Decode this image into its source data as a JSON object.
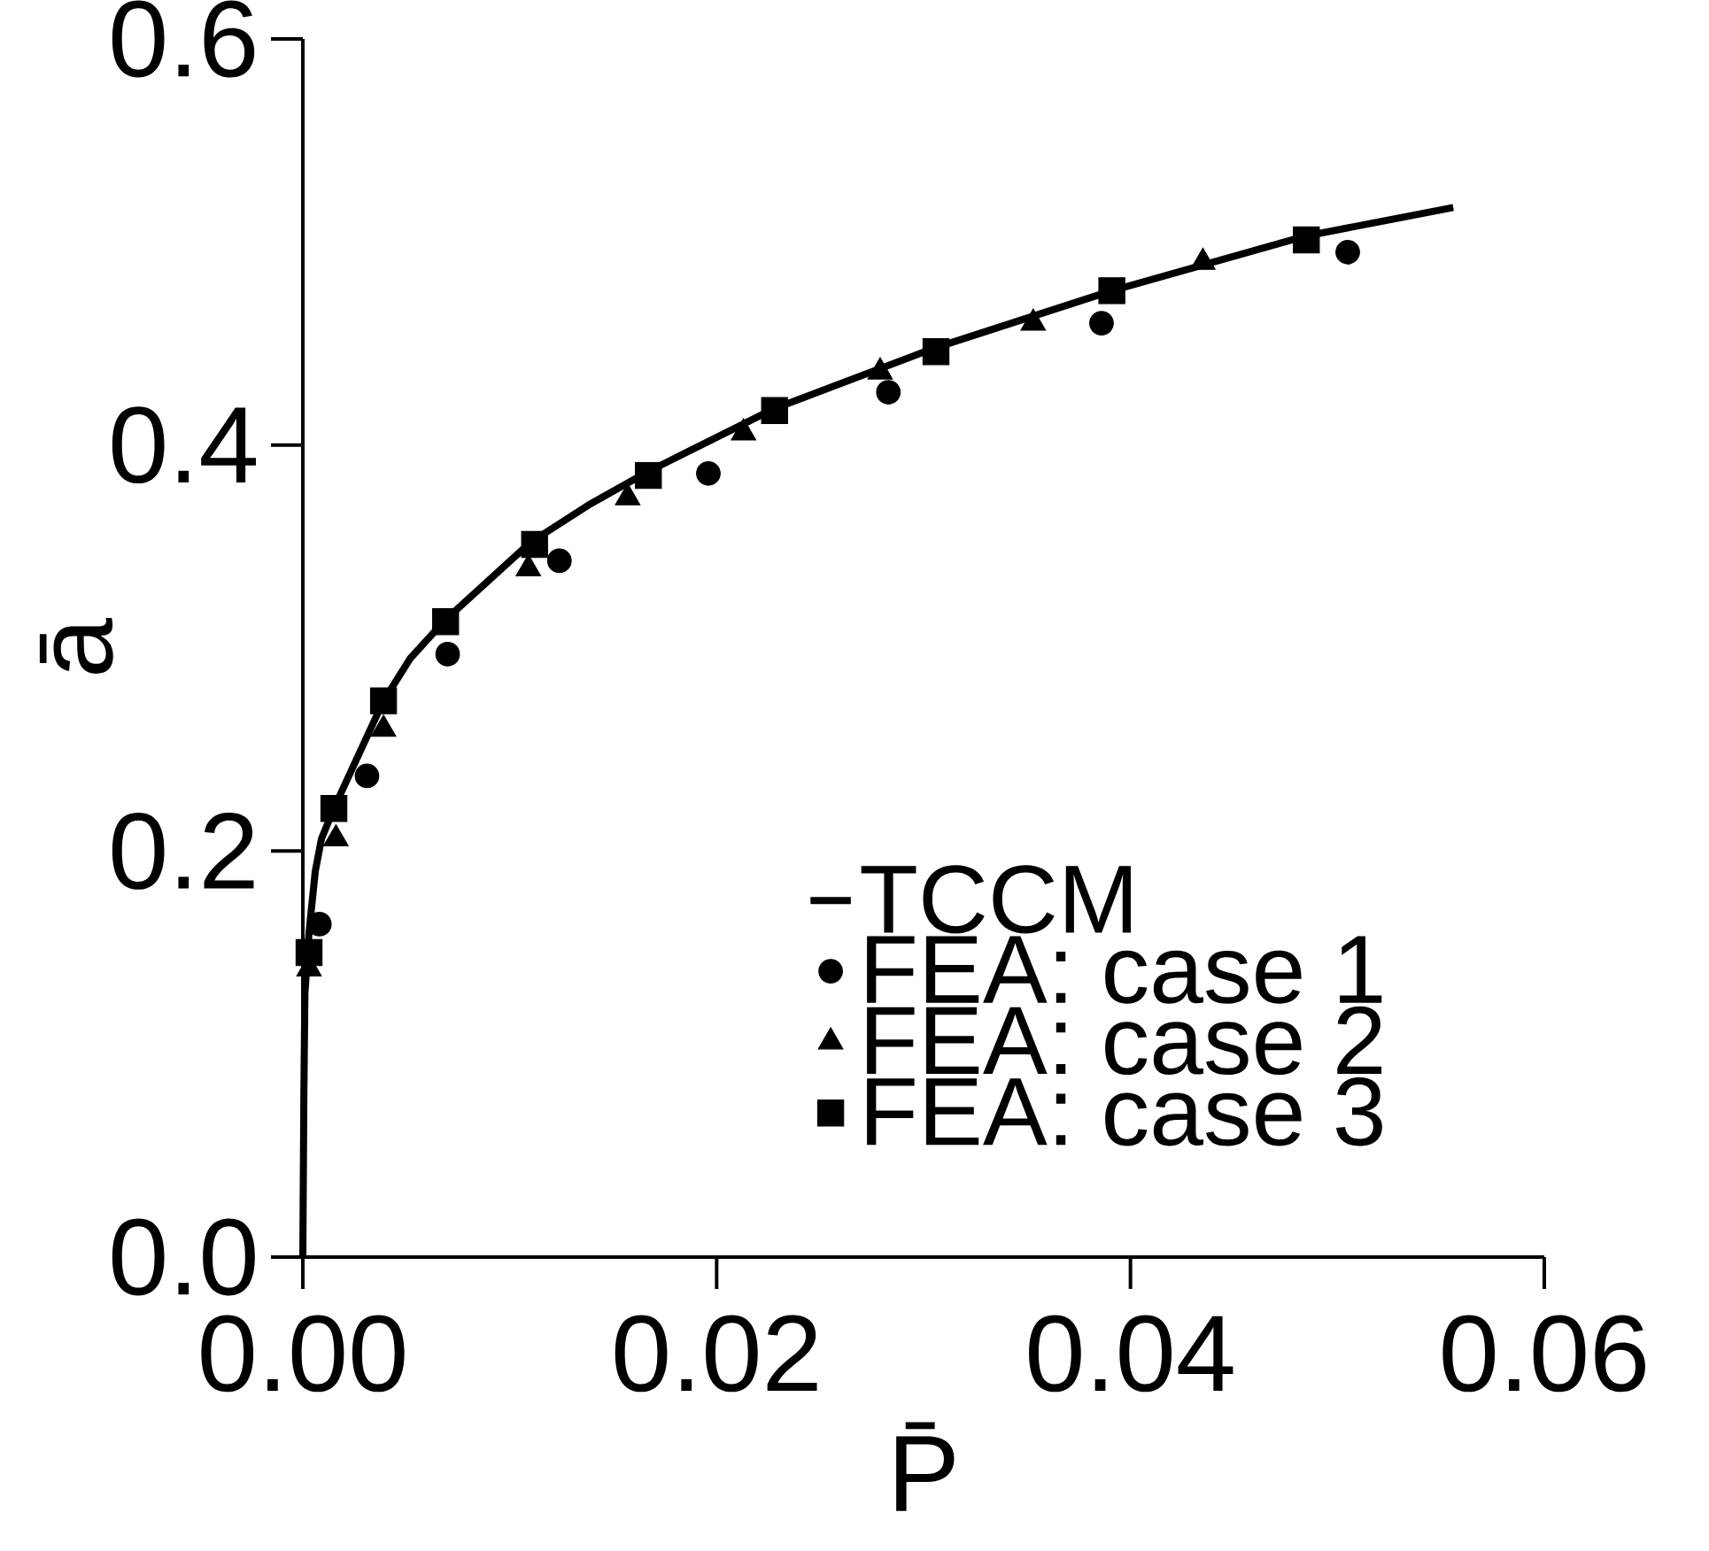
{
  "chart_data": {
    "type": "scatter",
    "xlabel": "P̄",
    "ylabel": "ā",
    "xlim": [
      0,
      0.06
    ],
    "ylim": [
      0,
      0.6
    ],
    "xticks": [
      {
        "value": 0,
        "label": "0.00"
      },
      {
        "value": 0.02,
        "label": "0.02"
      },
      {
        "value": 0.04,
        "label": "0.04"
      },
      {
        "value": 0.06,
        "label": "0.06"
      }
    ],
    "yticks": [
      {
        "value": 0,
        "label": "0.0"
      },
      {
        "value": 0.2,
        "label": "0.2"
      },
      {
        "value": 0.4,
        "label": "0.4"
      },
      {
        "value": 0.6,
        "label": "0.6"
      }
    ],
    "grid": false,
    "legend": "bottom right",
    "series": [
      {
        "name": "TCCM",
        "type": "line",
        "color": "#000000",
        "marker": "none",
        "line_style": "solid",
        "x": [
          0,
          5e-05,
          0.0001,
          0.0003,
          0.0006,
          0.0009,
          0.0015,
          0.0039,
          0.0052,
          0.0069,
          0.011,
          0.0139,
          0.0167,
          0.0228,
          0.0306,
          0.0391,
          0.0485,
          0.0556
        ],
        "values": [
          0,
          0.08,
          0.13,
          0.16,
          0.19,
          0.206,
          0.221,
          0.274,
          0.295,
          0.314,
          0.352,
          0.371,
          0.387,
          0.418,
          0.448,
          0.476,
          0.503,
          0.517
        ]
      },
      {
        "name": "FEA: case 1",
        "color": "#000000",
        "marker": "circle",
        "x": [
          0.0008,
          0.0031,
          0.007,
          0.0124,
          0.0196,
          0.0283,
          0.0386,
          0.0505
        ],
        "values": [
          0.164,
          0.237,
          0.297,
          0.343,
          0.386,
          0.426,
          0.46,
          0.495
        ]
      },
      {
        "name": "FEA: case 2",
        "color": "#000000",
        "marker": "triangle",
        "x": [
          0.0003,
          0.0016,
          0.0039,
          0.0109,
          0.0157,
          0.0213,
          0.0279,
          0.0353,
          0.0435
        ],
        "values": [
          0.142,
          0.206,
          0.26,
          0.339,
          0.374,
          0.406,
          0.436,
          0.46,
          0.49
        ]
      },
      {
        "name": "FEA: case 3",
        "color": "#000000",
        "marker": "square",
        "x": [
          0.0003,
          0.0015,
          0.0039,
          0.0069,
          0.0112,
          0.0167,
          0.0228,
          0.0306,
          0.0391,
          0.0485
        ],
        "values": [
          0.15,
          0.221,
          0.274,
          0.313,
          0.351,
          0.385,
          0.417,
          0.446,
          0.476,
          0.501
        ]
      }
    ]
  }
}
